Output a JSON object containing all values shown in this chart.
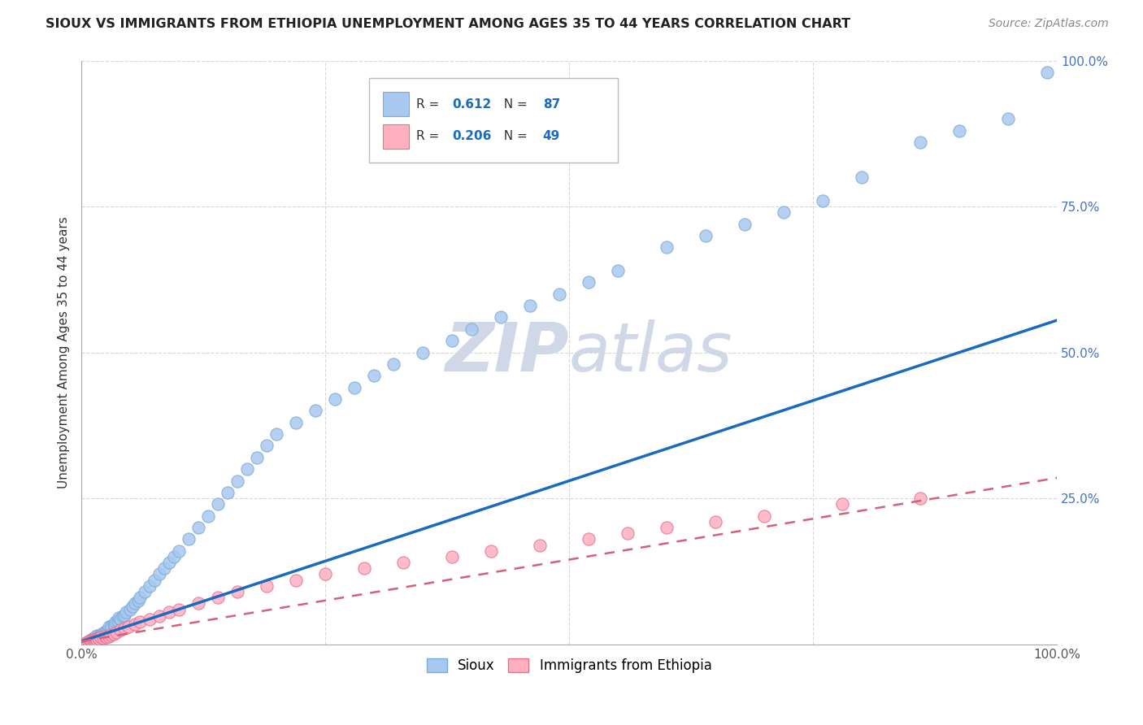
{
  "title": "SIOUX VS IMMIGRANTS FROM ETHIOPIA UNEMPLOYMENT AMONG AGES 35 TO 44 YEARS CORRELATION CHART",
  "source": "Source: ZipAtlas.com",
  "ylabel": "Unemployment Among Ages 35 to 44 years",
  "xlim": [
    0.0,
    1.0
  ],
  "ylim": [
    0.0,
    1.0
  ],
  "xtick_vals": [
    0.0,
    0.25,
    0.5,
    0.75,
    1.0
  ],
  "ytick_vals": [
    0.0,
    0.25,
    0.5,
    0.75,
    1.0
  ],
  "xtick_labels": [
    "0.0%",
    "",
    "",
    "",
    "100.0%"
  ],
  "ytick_labels": [
    "",
    "25.0%",
    "50.0%",
    "75.0%",
    "100.0%"
  ],
  "sioux_color": "#a8c8f0",
  "sioux_edge_color": "#7aadd4",
  "ethiopia_color": "#ffb0c0",
  "ethiopia_edge_color": "#e87090",
  "sioux_line_color": "#1a6abf",
  "ethiopia_line_color": "#d4607a",
  "watermark_color": "#d0d8e8",
  "R_sioux": 0.612,
  "N_sioux": 87,
  "R_ethiopia": 0.206,
  "N_ethiopia": 49,
  "sioux_x": [
    0.005,
    0.007,
    0.008,
    0.009,
    0.01,
    0.01,
    0.011,
    0.012,
    0.012,
    0.013,
    0.013,
    0.014,
    0.014,
    0.015,
    0.015,
    0.016,
    0.016,
    0.017,
    0.018,
    0.019,
    0.02,
    0.021,
    0.022,
    0.023,
    0.024,
    0.025,
    0.026,
    0.027,
    0.028,
    0.03,
    0.031,
    0.033,
    0.034,
    0.035,
    0.037,
    0.038,
    0.04,
    0.042,
    0.044,
    0.046,
    0.05,
    0.052,
    0.055,
    0.058,
    0.06,
    0.065,
    0.07,
    0.075,
    0.08,
    0.085,
    0.09,
    0.095,
    0.1,
    0.11,
    0.12,
    0.13,
    0.14,
    0.15,
    0.16,
    0.17,
    0.18,
    0.19,
    0.2,
    0.22,
    0.24,
    0.26,
    0.28,
    0.3,
    0.32,
    0.35,
    0.38,
    0.4,
    0.43,
    0.46,
    0.49,
    0.52,
    0.55,
    0.6,
    0.64,
    0.68,
    0.72,
    0.76,
    0.8,
    0.86,
    0.9,
    0.95,
    0.99
  ],
  "sioux_y": [
    0.003,
    0.005,
    0.004,
    0.006,
    0.005,
    0.008,
    0.006,
    0.008,
    0.01,
    0.007,
    0.009,
    0.012,
    0.01,
    0.008,
    0.013,
    0.011,
    0.015,
    0.013,
    0.012,
    0.016,
    0.015,
    0.018,
    0.017,
    0.02,
    0.019,
    0.022,
    0.021,
    0.025,
    0.03,
    0.028,
    0.032,
    0.035,
    0.033,
    0.038,
    0.04,
    0.045,
    0.042,
    0.048,
    0.05,
    0.055,
    0.06,
    0.065,
    0.07,
    0.075,
    0.08,
    0.09,
    0.1,
    0.11,
    0.12,
    0.13,
    0.14,
    0.15,
    0.16,
    0.18,
    0.2,
    0.22,
    0.24,
    0.26,
    0.28,
    0.3,
    0.32,
    0.34,
    0.36,
    0.38,
    0.4,
    0.42,
    0.44,
    0.46,
    0.48,
    0.5,
    0.52,
    0.54,
    0.56,
    0.58,
    0.6,
    0.62,
    0.64,
    0.68,
    0.7,
    0.72,
    0.74,
    0.76,
    0.8,
    0.86,
    0.88,
    0.9,
    0.98
  ],
  "ethiopia_x": [
    0.005,
    0.006,
    0.007,
    0.008,
    0.009,
    0.01,
    0.011,
    0.012,
    0.013,
    0.014,
    0.015,
    0.016,
    0.017,
    0.018,
    0.02,
    0.022,
    0.024,
    0.026,
    0.028,
    0.03,
    0.033,
    0.036,
    0.04,
    0.044,
    0.048,
    0.055,
    0.06,
    0.07,
    0.08,
    0.09,
    0.1,
    0.12,
    0.14,
    0.16,
    0.19,
    0.22,
    0.25,
    0.29,
    0.33,
    0.38,
    0.42,
    0.47,
    0.52,
    0.56,
    0.6,
    0.65,
    0.7,
    0.78,
    0.86
  ],
  "ethiopia_y": [
    0.003,
    0.004,
    0.005,
    0.003,
    0.006,
    0.005,
    0.007,
    0.006,
    0.008,
    0.007,
    0.009,
    0.008,
    0.01,
    0.009,
    0.012,
    0.011,
    0.013,
    0.012,
    0.014,
    0.016,
    0.018,
    0.02,
    0.025,
    0.028,
    0.03,
    0.035,
    0.038,
    0.042,
    0.048,
    0.055,
    0.06,
    0.07,
    0.08,
    0.09,
    0.1,
    0.11,
    0.12,
    0.13,
    0.14,
    0.15,
    0.16,
    0.17,
    0.18,
    0.19,
    0.2,
    0.21,
    0.22,
    0.24,
    0.25
  ],
  "legend_label_sioux": "Sioux",
  "legend_label_ethiopia": "Immigrants from Ethiopia",
  "background_color": "#ffffff",
  "grid_color": "#d8d8d8",
  "sioux_line_intercept": 0.005,
  "sioux_line_slope": 0.55,
  "ethiopia_line_intercept": 0.005,
  "ethiopia_line_slope": 0.28
}
